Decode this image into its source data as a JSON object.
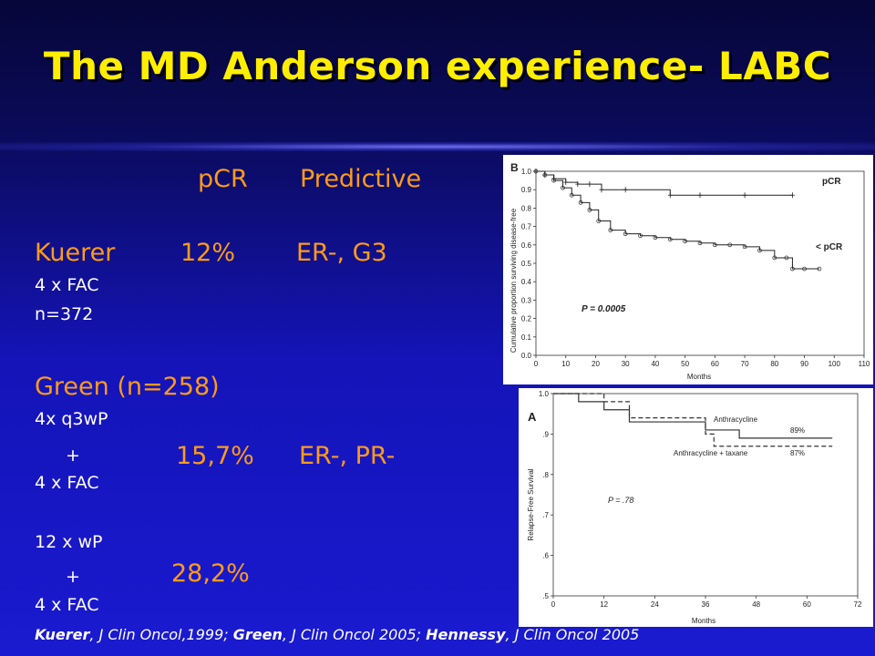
{
  "slide": {
    "title": "The MD Anderson experience- LABC",
    "header_pcr": "pCR",
    "header_predictive": "Predictive",
    "kuerer": {
      "name": "Kuerer",
      "pcr": "12%",
      "predictive": "ER-, G3",
      "line1": "4 x FAC",
      "line2": "n=372"
    },
    "green": {
      "name": "Green (n=258)",
      "arm1": {
        "line1": "4x q3wP",
        "plus": "+",
        "pcr": "15,7%",
        "predictive": "ER-, PR-",
        "line2": "4 x FAC"
      },
      "arm2": {
        "line1": "12 x wP",
        "plus": "+",
        "pcr": "28,2%",
        "line2": "4 x FAC"
      }
    },
    "footnote": {
      "a1": "Kuerer",
      "b1": ", J Clin Oncol,1999; ",
      "a2": "Green",
      "b2": ", J Clin Oncol 2005; ",
      "a3": "Hennessy",
      "b3": ", J Clin Oncol 2005"
    },
    "colors": {
      "title": "#ffee00",
      "accent": "#ff9b1a",
      "text": "#ffffff",
      "background": "#1414b8"
    }
  },
  "chart_data": [
    {
      "type": "line",
      "panel_label": "B",
      "xlabel": "Months",
      "ylabel": "Cumulative proportion surviving disease-free",
      "xlim": [
        0,
        110
      ],
      "ylim": [
        0.0,
        1.0
      ],
      "x_ticks": [
        "0",
        "10",
        "20",
        "30",
        "40",
        "50",
        "60",
        "70",
        "80",
        "90",
        "100",
        "110"
      ],
      "y_ticks": [
        "0.0",
        "0.1",
        "0.2",
        "0.3",
        "0.4",
        "0.5",
        "0.6",
        "0.7",
        "0.8",
        "0.9",
        "1.0"
      ],
      "annotation": "P = 0.0005",
      "series": [
        {
          "name": "pCR",
          "x": [
            0,
            3,
            6,
            10,
            14,
            18,
            22,
            30,
            45,
            55,
            70,
            86
          ],
          "y": [
            1.0,
            0.98,
            0.96,
            0.94,
            0.93,
            0.93,
            0.9,
            0.9,
            0.87,
            0.87,
            0.87,
            0.87
          ]
        },
        {
          "name": "< pCR",
          "x": [
            0,
            3,
            6,
            9,
            12,
            15,
            18,
            21,
            25,
            30,
            35,
            40,
            45,
            50,
            55,
            60,
            65,
            70,
            75,
            80,
            84,
            86,
            90,
            95
          ],
          "y": [
            1.0,
            0.98,
            0.95,
            0.91,
            0.87,
            0.83,
            0.79,
            0.73,
            0.68,
            0.66,
            0.65,
            0.64,
            0.63,
            0.62,
            0.61,
            0.6,
            0.6,
            0.59,
            0.57,
            0.53,
            0.53,
            0.47,
            0.47,
            0.47
          ]
        }
      ]
    },
    {
      "type": "line",
      "panel_label": "A",
      "xlabel": "Months",
      "ylabel": "Relapse-Free Survival",
      "xlim": [
        0,
        72
      ],
      "ylim": [
        0.5,
        1.0
      ],
      "x_ticks": [
        "0",
        "12",
        "24",
        "36",
        "48",
        "60",
        "72"
      ],
      "y_ticks": [
        ".5",
        ".6",
        ".7",
        ".8",
        ".9",
        "1.0"
      ],
      "annotation": "P = .78",
      "series": [
        {
          "name": "Anthracycline",
          "end_label": "89%",
          "x": [
            0,
            6,
            12,
            18,
            30,
            36,
            44,
            66
          ],
          "y": [
            1.0,
            0.98,
            0.96,
            0.93,
            0.93,
            0.91,
            0.89,
            0.89
          ]
        },
        {
          "name": "Anthracycline + taxane",
          "end_label": "87%",
          "x": [
            0,
            12,
            18,
            36,
            38,
            66
          ],
          "y": [
            1.0,
            0.98,
            0.94,
            0.9,
            0.87,
            0.87
          ]
        }
      ]
    }
  ]
}
